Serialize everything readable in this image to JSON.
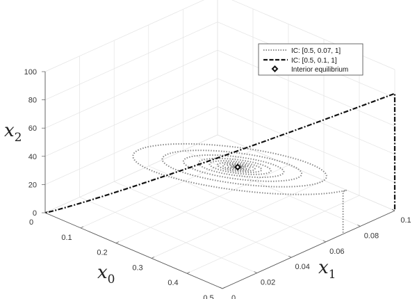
{
  "chart_data": {
    "type": "line3d",
    "xlabel": "x",
    "xlabel_sub": "0",
    "ylabel": "x",
    "ylabel_sub": "1",
    "zlabel": "x",
    "zlabel_sub": "2",
    "x0_range": [
      0,
      0.5
    ],
    "x1_range": [
      0,
      0.1
    ],
    "x2_range": [
      0,
      100
    ],
    "x0_ticks": [
      "0",
      "0.1",
      "0.2",
      "0.3",
      "0.4",
      "0.5"
    ],
    "x0_tick_values": [
      0,
      0.1,
      0.2,
      0.3,
      0.4,
      0.5
    ],
    "x1_ticks": [
      "0",
      "0.02",
      "0.04",
      "0.06",
      "0.08",
      "0.1"
    ],
    "x1_tick_values": [
      0,
      0.02,
      0.04,
      0.06,
      0.08,
      0.1
    ],
    "x2_ticks": [
      "0",
      "20",
      "40",
      "60",
      "80",
      "100"
    ],
    "x2_tick_values": [
      0,
      20,
      40,
      60,
      80,
      100
    ],
    "grid": true,
    "legend_position": "top-right",
    "series": [
      {
        "name": "IC: [0.5, 0.07, 1]",
        "style": "dotted",
        "color": "#888888",
        "initial_condition": [
          0.5,
          0.07,
          1
        ],
        "rise_to_x2": 30,
        "spiral": {
          "center": [
            0.3,
            0.05,
            37
          ],
          "turns": 11,
          "decay": 0.72
        }
      },
      {
        "name": "IC: [0.5, 0.1, 1]",
        "style": "dashdot",
        "color": "#111111",
        "initial_condition": [
          0.5,
          0.1,
          1
        ],
        "peak_x2": 83,
        "end": [
          0,
          0,
          0
        ]
      }
    ],
    "equilibrium": {
      "name": "Interior equilibrium",
      "point": [
        0.3,
        0.05,
        37
      ],
      "marker": "diamond"
    }
  }
}
